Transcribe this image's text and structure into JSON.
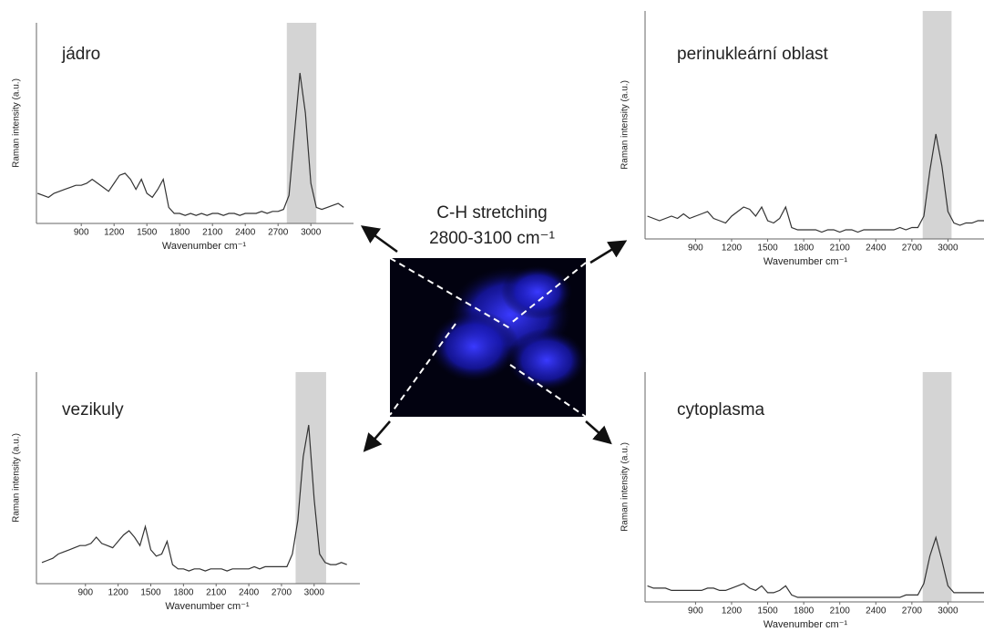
{
  "center_label": [
    "C-H stretching",
    "2800-3100 cm⁻¹"
  ],
  "chart_data": [
    {
      "type": "line",
      "title": "jádro",
      "x_label": "Wavenumber cm⁻¹",
      "y_label": "Raman intensity (a.u.)",
      "xlim": [
        490,
        3390
      ],
      "ylim": [
        0,
        100
      ],
      "xticks": [
        900,
        1200,
        1500,
        1800,
        2100,
        2400,
        2700,
        3000
      ],
      "highlight": [
        2780,
        3050
      ],
      "color": "#333333",
      "x": [
        500,
        550,
        600,
        650,
        700,
        750,
        800,
        850,
        900,
        950,
        1000,
        1050,
        1100,
        1150,
        1200,
        1250,
        1300,
        1350,
        1400,
        1450,
        1500,
        1550,
        1600,
        1650,
        1700,
        1750,
        1800,
        1850,
        1900,
        1950,
        2000,
        2050,
        2100,
        2150,
        2200,
        2250,
        2300,
        2350,
        2400,
        2450,
        2500,
        2550,
        2600,
        2650,
        2700,
        2750,
        2800,
        2850,
        2900,
        2950,
        3000,
        3050,
        3100,
        3150,
        3200,
        3250,
        3300
      ],
      "values": [
        15,
        14,
        13,
        15,
        16,
        17,
        18,
        19,
        19,
        20,
        22,
        20,
        18,
        16,
        20,
        24,
        25,
        22,
        17,
        22,
        15,
        13,
        17,
        22,
        8,
        5,
        5,
        4,
        5,
        4,
        5,
        4,
        5,
        5,
        4,
        5,
        5,
        4,
        5,
        5,
        5,
        6,
        5,
        6,
        6,
        7,
        14,
        45,
        75,
        55,
        20,
        8,
        7,
        8,
        9,
        10,
        8
      ]
    },
    {
      "type": "line",
      "title": "perinukleární oblast",
      "x_label": "Wavenumber cm⁻¹",
      "y_label": "Raman intensity (a.u.)",
      "xlim": [
        480,
        3300
      ],
      "ylim": [
        0,
        100
      ],
      "xticks": [
        900,
        1200,
        1500,
        1800,
        2100,
        2400,
        2700,
        3000
      ],
      "highlight": [
        2790,
        3030
      ],
      "color": "#333333",
      "x": [
        500,
        550,
        600,
        650,
        700,
        750,
        800,
        850,
        900,
        950,
        1000,
        1050,
        1100,
        1150,
        1200,
        1250,
        1300,
        1350,
        1400,
        1450,
        1500,
        1550,
        1600,
        1650,
        1700,
        1750,
        1800,
        1850,
        1900,
        1950,
        2000,
        2050,
        2100,
        2150,
        2200,
        2250,
        2300,
        2350,
        2400,
        2450,
        2500,
        2550,
        2600,
        2650,
        2700,
        2750,
        2800,
        2850,
        2900,
        2950,
        3000,
        3050,
        3100,
        3150,
        3200,
        3250,
        3300
      ],
      "values": [
        10,
        9,
        8,
        9,
        10,
        9,
        11,
        9,
        10,
        11,
        12,
        9,
        8,
        7,
        10,
        12,
        14,
        13,
        10,
        14,
        8,
        7,
        9,
        14,
        5,
        4,
        4,
        4,
        4,
        3,
        4,
        4,
        3,
        4,
        4,
        3,
        4,
        4,
        4,
        4,
        4,
        4,
        5,
        4,
        5,
        5,
        10,
        30,
        46,
        32,
        12,
        7,
        6,
        7,
        7,
        8,
        8
      ]
    },
    {
      "type": "line",
      "title": "vezikuly",
      "x_label": "Wavenumber cm⁻¹",
      "y_label": "Raman intensity (a.u.)",
      "xlim": [
        450,
        3420
      ],
      "ylim": [
        0,
        100
      ],
      "xticks": [
        900,
        1200,
        1500,
        1800,
        2100,
        2400,
        2700,
        3000
      ],
      "highlight": [
        2830,
        3110
      ],
      "color": "#333333",
      "x": [
        500,
        550,
        600,
        650,
        700,
        750,
        800,
        850,
        900,
        950,
        1000,
        1050,
        1100,
        1150,
        1200,
        1250,
        1300,
        1350,
        1400,
        1450,
        1500,
        1550,
        1600,
        1650,
        1700,
        1750,
        1800,
        1850,
        1900,
        1950,
        2000,
        2050,
        2100,
        2150,
        2200,
        2250,
        2300,
        2350,
        2400,
        2450,
        2500,
        2550,
        2600,
        2650,
        2700,
        2750,
        2800,
        2850,
        2900,
        2950,
        3000,
        3050,
        3100,
        3150,
        3200,
        3250,
        3300
      ],
      "values": [
        10,
        11,
        12,
        14,
        15,
        16,
        17,
        18,
        18,
        19,
        22,
        19,
        18,
        17,
        20,
        23,
        25,
        22,
        18,
        27,
        16,
        13,
        14,
        20,
        9,
        7,
        7,
        6,
        7,
        7,
        6,
        7,
        7,
        7,
        6,
        7,
        7,
        7,
        7,
        8,
        7,
        8,
        8,
        8,
        8,
        8,
        14,
        30,
        60,
        75,
        40,
        14,
        10,
        9,
        9,
        10,
        9
      ]
    },
    {
      "type": "line",
      "title": "cytoplasma",
      "x_label": "Wavenumber cm⁻¹",
      "y_label": "Raman intensity (a.u.)",
      "xlim": [
        480,
        3300
      ],
      "ylim": [
        0,
        100
      ],
      "xticks": [
        900,
        1200,
        1500,
        1800,
        2100,
        2400,
        2700,
        3000
      ],
      "highlight": [
        2790,
        3030
      ],
      "color": "#333333",
      "x": [
        500,
        550,
        600,
        650,
        700,
        750,
        800,
        850,
        900,
        950,
        1000,
        1050,
        1100,
        1150,
        1200,
        1250,
        1300,
        1350,
        1400,
        1450,
        1500,
        1550,
        1600,
        1650,
        1700,
        1750,
        1800,
        1850,
        1900,
        1950,
        2000,
        2050,
        2100,
        2150,
        2200,
        2250,
        2300,
        2350,
        2400,
        2450,
        2500,
        2550,
        2600,
        2650,
        2700,
        2750,
        2800,
        2850,
        2900,
        2950,
        3000,
        3050,
        3100,
        3150,
        3200,
        3250,
        3300
      ],
      "values": [
        7,
        6,
        6,
        6,
        5,
        5,
        5,
        5,
        5,
        5,
        6,
        6,
        5,
        5,
        6,
        7,
        8,
        6,
        5,
        7,
        4,
        4,
        5,
        7,
        3,
        2,
        2,
        2,
        2,
        2,
        2,
        2,
        2,
        2,
        2,
        2,
        2,
        2,
        2,
        2,
        2,
        2,
        2,
        3,
        3,
        3,
        8,
        20,
        28,
        18,
        7,
        4,
        4,
        4,
        4,
        4,
        4
      ]
    }
  ]
}
